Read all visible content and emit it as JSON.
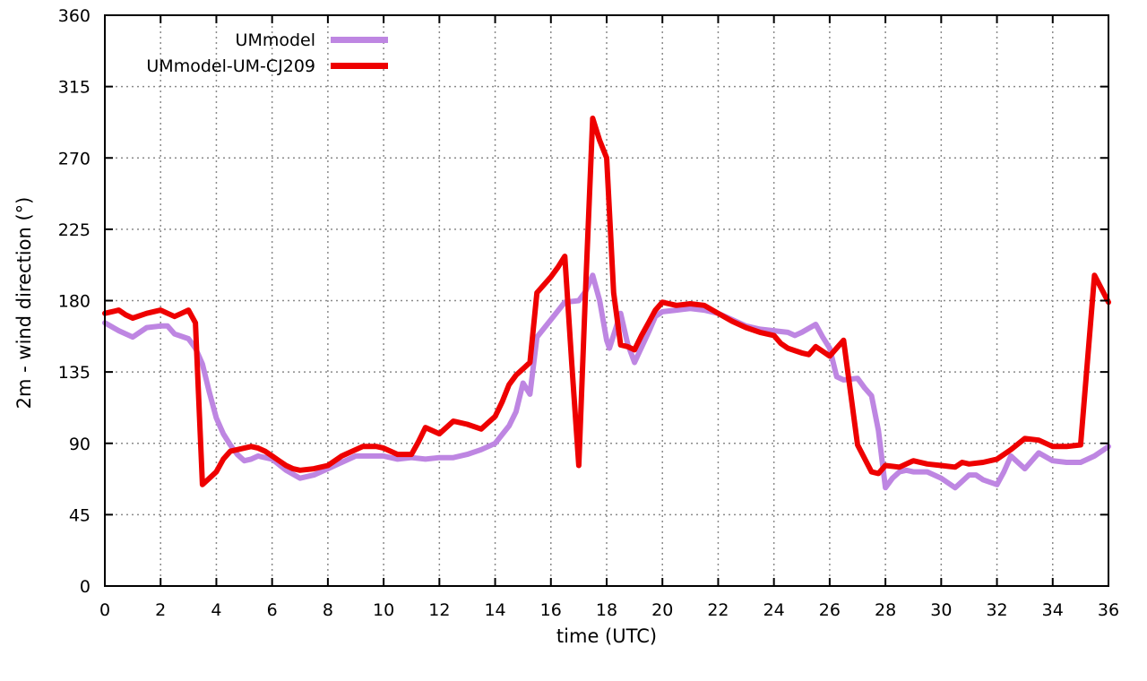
{
  "chart_data": {
    "type": "line",
    "title": "",
    "xlabel": "time (UTC)",
    "ylabel": "2m - wind direction (°)",
    "xlim": [
      0,
      36
    ],
    "ylim": [
      0,
      360
    ],
    "xticks": [
      0,
      2,
      4,
      6,
      8,
      10,
      12,
      14,
      16,
      18,
      20,
      22,
      24,
      26,
      28,
      30,
      32,
      34,
      36
    ],
    "yticks": [
      0,
      45,
      90,
      135,
      180,
      225,
      270,
      315,
      360
    ],
    "grid": true,
    "grid_style": "dotted-gray",
    "legend_position": "top-left-inside",
    "series": [
      {
        "name": "UMmodel",
        "color": "#be86e2",
        "points": [
          [
            0,
            166
          ],
          [
            0.5,
            161
          ],
          [
            1,
            157
          ],
          [
            1.25,
            160
          ],
          [
            1.5,
            163
          ],
          [
            2,
            164
          ],
          [
            2.25,
            164
          ],
          [
            2.5,
            159
          ],
          [
            3,
            156
          ],
          [
            3.25,
            150
          ],
          [
            3.5,
            140
          ],
          [
            3.75,
            122
          ],
          [
            4,
            106
          ],
          [
            4.25,
            96
          ],
          [
            4.5,
            89
          ],
          [
            4.75,
            83
          ],
          [
            5,
            79
          ],
          [
            5.25,
            80
          ],
          [
            5.5,
            82
          ],
          [
            6,
            80
          ],
          [
            6.5,
            73
          ],
          [
            7,
            68
          ],
          [
            7.5,
            70
          ],
          [
            8,
            74
          ],
          [
            8.5,
            78
          ],
          [
            9,
            82
          ],
          [
            9.5,
            82
          ],
          [
            10,
            82
          ],
          [
            10.5,
            80
          ],
          [
            11,
            81
          ],
          [
            11.5,
            80
          ],
          [
            12,
            81
          ],
          [
            12.5,
            81
          ],
          [
            13,
            83
          ],
          [
            13.5,
            86
          ],
          [
            14,
            90
          ],
          [
            14.5,
            101
          ],
          [
            14.75,
            110
          ],
          [
            15,
            128
          ],
          [
            15.25,
            121
          ],
          [
            15.5,
            157
          ],
          [
            16,
            168
          ],
          [
            16.5,
            179
          ],
          [
            17,
            180
          ],
          [
            17.25,
            186
          ],
          [
            17.5,
            196
          ],
          [
            17.75,
            180
          ],
          [
            18,
            155
          ],
          [
            18.1,
            150
          ],
          [
            18.5,
            172
          ],
          [
            18.75,
            153
          ],
          [
            19,
            141
          ],
          [
            19.5,
            160
          ],
          [
            19.75,
            170
          ],
          [
            20,
            173
          ],
          [
            20.5,
            174
          ],
          [
            21,
            175
          ],
          [
            21.5,
            174
          ],
          [
            22,
            172
          ],
          [
            22.5,
            168
          ],
          [
            23,
            164
          ],
          [
            23.5,
            162
          ],
          [
            24,
            161
          ],
          [
            24.5,
            160
          ],
          [
            24.75,
            158
          ],
          [
            25,
            160
          ],
          [
            25.5,
            165
          ],
          [
            25.75,
            157
          ],
          [
            26,
            150
          ],
          [
            26.25,
            132
          ],
          [
            26.5,
            130
          ],
          [
            27,
            131
          ],
          [
            27.25,
            125
          ],
          [
            27.5,
            120
          ],
          [
            27.75,
            98
          ],
          [
            28,
            62
          ],
          [
            28.25,
            68
          ],
          [
            28.5,
            72
          ],
          [
            28.75,
            73
          ],
          [
            29,
            72
          ],
          [
            29.5,
            72
          ],
          [
            30,
            68
          ],
          [
            30.5,
            62
          ],
          [
            30.75,
            66
          ],
          [
            31,
            70
          ],
          [
            31.25,
            70
          ],
          [
            31.5,
            67
          ],
          [
            32,
            64
          ],
          [
            32.25,
            72
          ],
          [
            32.5,
            82
          ],
          [
            33,
            74
          ],
          [
            33.5,
            84
          ],
          [
            34,
            79
          ],
          [
            34.5,
            78
          ],
          [
            35,
            78
          ],
          [
            35.5,
            82
          ],
          [
            36,
            88
          ]
        ]
      },
      {
        "name": "UMmodel-UM-CJ209",
        "color": "#ee0000",
        "points": [
          [
            0,
            172
          ],
          [
            0.5,
            174
          ],
          [
            0.75,
            171
          ],
          [
            1,
            169
          ],
          [
            1.5,
            172
          ],
          [
            2,
            174
          ],
          [
            2.25,
            172
          ],
          [
            2.5,
            170
          ],
          [
            2.75,
            172
          ],
          [
            3,
            174
          ],
          [
            3.25,
            166
          ],
          [
            3.5,
            64
          ],
          [
            3.75,
            68
          ],
          [
            4,
            72
          ],
          [
            4.25,
            80
          ],
          [
            4.5,
            85
          ],
          [
            5,
            87
          ],
          [
            5.25,
            88
          ],
          [
            5.5,
            87
          ],
          [
            5.75,
            85
          ],
          [
            6,
            82
          ],
          [
            6.25,
            79
          ],
          [
            6.5,
            76
          ],
          [
            6.75,
            74
          ],
          [
            7,
            73
          ],
          [
            7.5,
            74
          ],
          [
            8,
            76
          ],
          [
            8.5,
            82
          ],
          [
            9,
            86
          ],
          [
            9.25,
            88
          ],
          [
            9.75,
            88
          ],
          [
            10,
            87
          ],
          [
            10.5,
            83
          ],
          [
            11,
            83
          ],
          [
            11.25,
            91
          ],
          [
            11.5,
            100
          ],
          [
            11.75,
            98
          ],
          [
            12,
            96
          ],
          [
            12.5,
            104
          ],
          [
            13,
            102
          ],
          [
            13.5,
            99
          ],
          [
            13.75,
            103
          ],
          [
            14,
            107
          ],
          [
            14.25,
            116
          ],
          [
            14.5,
            127
          ],
          [
            14.75,
            133
          ],
          [
            15,
            137
          ],
          [
            15.25,
            141
          ],
          [
            15.5,
            185
          ],
          [
            16,
            195
          ],
          [
            16.25,
            201
          ],
          [
            16.5,
            208
          ],
          [
            16.75,
            140
          ],
          [
            17,
            76
          ],
          [
            17.25,
            190
          ],
          [
            17.5,
            295
          ],
          [
            17.75,
            281
          ],
          [
            18,
            270
          ],
          [
            18.25,
            185
          ],
          [
            18.5,
            152
          ],
          [
            18.75,
            151
          ],
          [
            19,
            149
          ],
          [
            19.25,
            158
          ],
          [
            19.5,
            166
          ],
          [
            19.75,
            174
          ],
          [
            20,
            179
          ],
          [
            20.5,
            177
          ],
          [
            21,
            178
          ],
          [
            21.5,
            177
          ],
          [
            22,
            172
          ],
          [
            22.5,
            167
          ],
          [
            23,
            163
          ],
          [
            23.5,
            160
          ],
          [
            24,
            158
          ],
          [
            24.25,
            153
          ],
          [
            24.5,
            150
          ],
          [
            25,
            147
          ],
          [
            25.25,
            146
          ],
          [
            25.5,
            151
          ],
          [
            26,
            145
          ],
          [
            26.5,
            155
          ],
          [
            27,
            89
          ],
          [
            27.5,
            72
          ],
          [
            27.75,
            71
          ],
          [
            28,
            76
          ],
          [
            28.5,
            75
          ],
          [
            29,
            79
          ],
          [
            29.5,
            77
          ],
          [
            30,
            76
          ],
          [
            30.5,
            75
          ],
          [
            30.75,
            78
          ],
          [
            31,
            77
          ],
          [
            31.5,
            78
          ],
          [
            32,
            80
          ],
          [
            32.5,
            86
          ],
          [
            33,
            93
          ],
          [
            33.5,
            92
          ],
          [
            34,
            88
          ],
          [
            34.5,
            88
          ],
          [
            35,
            89
          ],
          [
            35.5,
            196
          ],
          [
            36,
            179
          ]
        ]
      }
    ]
  },
  "legend": {
    "items": [
      "UMmodel",
      "UMmodel-UM-CJ209"
    ]
  }
}
